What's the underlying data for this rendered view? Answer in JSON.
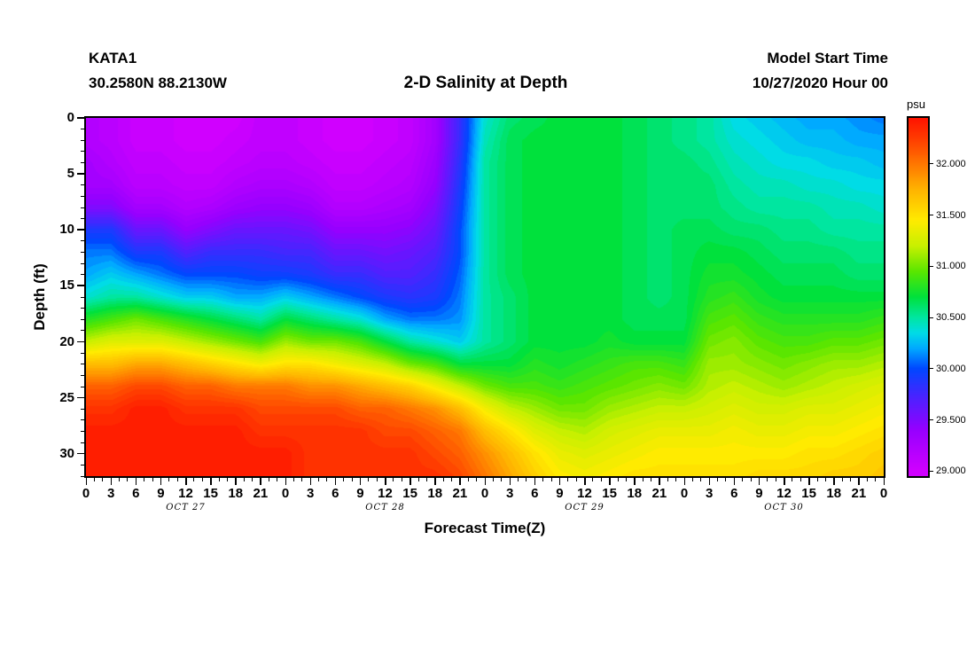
{
  "header": {
    "station_id": "KATA1",
    "coordinates": "30.2580N 88.2130W",
    "title": "2-D Salinity at Depth",
    "model_start_label": "Model Start Time",
    "model_start_value": "10/27/2020 Hour 00"
  },
  "axes": {
    "ylabel": "Depth (ft)",
    "xlabel": "Forecast Time(Z)",
    "yticks": [
      0,
      5,
      10,
      15,
      20,
      25,
      30
    ],
    "xtick_labels": [
      "0",
      "3",
      "6",
      "9",
      "12",
      "15",
      "18",
      "21",
      "0",
      "3",
      "6",
      "9",
      "12",
      "15",
      "18",
      "21",
      "0",
      "3",
      "6",
      "9",
      "12",
      "15",
      "18",
      "21",
      "0",
      "3",
      "6",
      "9",
      "12",
      "15",
      "18",
      "21",
      "0"
    ],
    "day_labels": [
      {
        "label": "OCT 27",
        "hour": 12
      },
      {
        "label": "OCT 28",
        "hour": 36
      },
      {
        "label": "OCT 29",
        "hour": 60
      },
      {
        "label": "OCT 30",
        "hour": 84
      }
    ]
  },
  "colorbar": {
    "label": "psu",
    "ticks": [
      "32.000",
      "31.500",
      "31.000",
      "30.500",
      "30.000",
      "29.500",
      "29.000"
    ],
    "tick_values": [
      32.0,
      31.5,
      31.0,
      30.5,
      30.0,
      29.5,
      29.0
    ],
    "domain": [
      28.95,
      32.45
    ]
  },
  "chart_data": {
    "type": "heatmap",
    "title": "2-D Salinity at Depth",
    "xlabel": "Forecast Time(Z)",
    "ylabel": "Depth (ft)",
    "units": "psu",
    "x_range_hours": [
      0,
      96
    ],
    "depth_range_ft": [
      0,
      32
    ],
    "x_hours": [
      0,
      3,
      6,
      9,
      12,
      15,
      18,
      21,
      24,
      27,
      30,
      33,
      36,
      39,
      42,
      45,
      48,
      51,
      54,
      57,
      60,
      63,
      66,
      69,
      72,
      75,
      78,
      81,
      84,
      87,
      90,
      93,
      96
    ],
    "depths_ft": [
      0,
      2,
      4,
      6,
      8,
      10,
      12,
      14,
      16,
      18,
      20,
      22,
      24,
      26,
      28,
      30,
      32
    ],
    "values": [
      [
        29.2,
        29.15,
        29.05,
        29.05,
        29.0,
        29.0,
        29.0,
        29.1,
        29.1,
        29.05,
        29.0,
        29.0,
        29.05,
        29.1,
        29.3,
        29.8,
        30.4,
        30.6,
        30.65,
        30.7,
        30.7,
        30.7,
        30.65,
        30.6,
        30.55,
        30.5,
        30.35,
        30.3,
        30.25,
        30.2,
        30.2,
        30.15,
        30.1
      ],
      [
        29.2,
        29.15,
        29.05,
        29.05,
        29.0,
        29.0,
        29.05,
        29.1,
        29.1,
        29.05,
        29.0,
        29.0,
        29.05,
        29.1,
        29.3,
        29.8,
        30.45,
        30.65,
        30.7,
        30.7,
        30.7,
        30.7,
        30.65,
        30.6,
        30.55,
        30.5,
        30.4,
        30.35,
        30.3,
        30.25,
        30.25,
        30.2,
        30.2
      ],
      [
        29.3,
        29.2,
        29.1,
        29.1,
        29.05,
        29.05,
        29.1,
        29.15,
        29.15,
        29.1,
        29.05,
        29.05,
        29.1,
        29.15,
        29.35,
        29.85,
        30.5,
        30.65,
        30.7,
        30.7,
        30.7,
        30.7,
        30.65,
        30.6,
        30.6,
        30.55,
        30.45,
        30.4,
        30.35,
        30.35,
        30.3,
        30.3,
        30.25
      ],
      [
        29.3,
        29.3,
        29.15,
        29.15,
        29.1,
        29.1,
        29.2,
        29.25,
        29.25,
        29.2,
        29.1,
        29.1,
        29.15,
        29.2,
        29.4,
        29.9,
        30.5,
        30.65,
        30.7,
        30.7,
        30.7,
        30.7,
        30.65,
        30.6,
        30.6,
        30.6,
        30.5,
        30.45,
        30.45,
        30.4,
        30.4,
        30.35,
        30.35
      ],
      [
        29.5,
        29.5,
        29.3,
        29.3,
        29.2,
        29.25,
        29.35,
        29.4,
        29.4,
        29.35,
        29.2,
        29.2,
        29.25,
        29.3,
        29.5,
        29.95,
        30.5,
        30.65,
        30.7,
        30.7,
        30.7,
        30.7,
        30.65,
        30.6,
        30.6,
        30.6,
        30.55,
        30.5,
        30.5,
        30.5,
        30.45,
        30.45,
        30.4
      ],
      [
        29.9,
        29.9,
        29.6,
        29.6,
        29.4,
        29.5,
        29.6,
        29.6,
        29.6,
        29.55,
        29.4,
        29.4,
        29.4,
        29.45,
        29.6,
        30.0,
        30.5,
        30.65,
        30.7,
        30.7,
        30.7,
        30.7,
        30.65,
        30.6,
        30.65,
        30.65,
        30.6,
        30.6,
        30.55,
        30.55,
        30.5,
        30.5,
        30.5
      ],
      [
        30.1,
        30.1,
        29.9,
        29.9,
        29.7,
        29.8,
        29.8,
        29.8,
        29.75,
        29.75,
        29.6,
        29.6,
        29.55,
        29.6,
        29.7,
        30.0,
        30.5,
        30.65,
        30.7,
        30.7,
        30.7,
        30.7,
        30.65,
        30.6,
        30.65,
        30.7,
        30.7,
        30.65,
        30.6,
        30.6,
        30.6,
        30.55,
        30.55
      ],
      [
        30.2,
        30.3,
        30.2,
        30.1,
        30.0,
        30.0,
        30.0,
        29.95,
        29.95,
        29.9,
        29.8,
        29.8,
        29.7,
        29.7,
        29.8,
        30.05,
        30.5,
        30.65,
        30.7,
        30.7,
        30.7,
        30.7,
        30.65,
        30.6,
        30.65,
        30.75,
        30.75,
        30.7,
        30.65,
        30.65,
        30.65,
        30.6,
        30.6
      ],
      [
        30.4,
        30.5,
        30.5,
        30.4,
        30.3,
        30.3,
        30.2,
        30.2,
        30.3,
        30.2,
        30.1,
        30.0,
        29.9,
        29.85,
        29.9,
        30.1,
        30.5,
        30.6,
        30.7,
        30.7,
        30.7,
        30.7,
        30.65,
        30.6,
        30.65,
        30.8,
        30.85,
        30.75,
        30.7,
        30.7,
        30.7,
        30.7,
        30.7
      ],
      [
        30.8,
        30.9,
        31.0,
        30.9,
        30.8,
        30.7,
        30.6,
        30.5,
        30.7,
        30.6,
        30.5,
        30.4,
        30.2,
        30.1,
        30.1,
        30.15,
        30.5,
        30.6,
        30.7,
        30.7,
        30.7,
        30.7,
        30.65,
        30.65,
        30.65,
        30.9,
        30.95,
        30.85,
        30.8,
        30.8,
        30.8,
        30.8,
        30.85
      ],
      [
        31.2,
        31.3,
        31.3,
        31.3,
        31.2,
        31.1,
        31.0,
        30.9,
        31.1,
        31.0,
        31.0,
        30.9,
        30.7,
        30.5,
        30.4,
        30.3,
        30.5,
        30.6,
        30.7,
        30.7,
        30.7,
        30.75,
        30.7,
        30.7,
        30.7,
        31.0,
        31.05,
        30.95,
        30.9,
        30.9,
        30.95,
        30.95,
        31.0
      ],
      [
        31.7,
        31.7,
        31.8,
        31.8,
        31.7,
        31.6,
        31.5,
        31.4,
        31.5,
        31.5,
        31.4,
        31.3,
        31.2,
        31.0,
        30.9,
        30.7,
        30.7,
        30.7,
        30.8,
        30.75,
        30.8,
        30.85,
        30.9,
        30.9,
        30.85,
        31.1,
        31.1,
        31.05,
        31.0,
        31.05,
        31.1,
        31.1,
        31.15
      ],
      [
        32.1,
        32.1,
        32.2,
        32.2,
        32.1,
        32.1,
        32.0,
        32.0,
        32.0,
        31.9,
        31.9,
        31.8,
        31.7,
        31.6,
        31.4,
        31.2,
        31.0,
        30.9,
        30.9,
        30.85,
        30.9,
        30.95,
        31.0,
        31.05,
        31.0,
        31.15,
        31.2,
        31.15,
        31.1,
        31.15,
        31.2,
        31.25,
        31.3
      ],
      [
        32.3,
        32.3,
        32.4,
        32.4,
        32.3,
        32.3,
        32.3,
        32.2,
        32.2,
        32.2,
        32.2,
        32.1,
        32.1,
        32.0,
        31.9,
        31.7,
        31.4,
        31.2,
        31.1,
        31.0,
        31.0,
        31.1,
        31.15,
        31.2,
        31.2,
        31.25,
        31.3,
        31.25,
        31.25,
        31.3,
        31.3,
        31.35,
        31.4
      ],
      [
        32.4,
        32.4,
        32.4,
        32.4,
        32.4,
        32.4,
        32.4,
        32.3,
        32.3,
        32.3,
        32.3,
        32.3,
        32.2,
        32.2,
        32.1,
        32.0,
        31.7,
        31.5,
        31.3,
        31.2,
        31.15,
        31.25,
        31.3,
        31.35,
        31.35,
        31.35,
        31.4,
        31.35,
        31.35,
        31.4,
        31.4,
        31.45,
        31.5
      ],
      [
        32.4,
        32.4,
        32.4,
        32.4,
        32.4,
        32.4,
        32.4,
        32.4,
        32.4,
        32.3,
        32.3,
        32.3,
        32.3,
        32.3,
        32.2,
        32.1,
        31.9,
        31.7,
        31.5,
        31.35,
        31.3,
        31.35,
        31.4,
        31.45,
        31.45,
        31.45,
        31.45,
        31.45,
        31.45,
        31.5,
        31.5,
        31.55,
        31.6
      ],
      [
        32.4,
        32.4,
        32.4,
        32.4,
        32.4,
        32.4,
        32.4,
        32.4,
        32.4,
        32.3,
        32.3,
        32.3,
        32.3,
        32.3,
        32.3,
        32.2,
        32.0,
        31.8,
        31.6,
        31.45,
        31.4,
        31.45,
        31.5,
        31.5,
        31.5,
        31.5,
        31.5,
        31.55,
        31.55,
        31.55,
        31.6,
        31.6,
        31.65
      ]
    ],
    "colormap_stops": [
      [
        29.0,
        "#d000ff"
      ],
      [
        29.4,
        "#9600ff"
      ],
      [
        29.7,
        "#5020ff"
      ],
      [
        30.0,
        "#0048ff"
      ],
      [
        30.2,
        "#00aaff"
      ],
      [
        30.35,
        "#00dce6"
      ],
      [
        30.5,
        "#00e6a0"
      ],
      [
        30.7,
        "#00e13c"
      ],
      [
        30.95,
        "#5ae600"
      ],
      [
        31.2,
        "#c8f000"
      ],
      [
        31.45,
        "#ffeb00"
      ],
      [
        31.75,
        "#ffb400"
      ],
      [
        32.0,
        "#ff7800"
      ],
      [
        32.25,
        "#ff3c00"
      ],
      [
        32.5,
        "#ff0a00"
      ]
    ]
  }
}
